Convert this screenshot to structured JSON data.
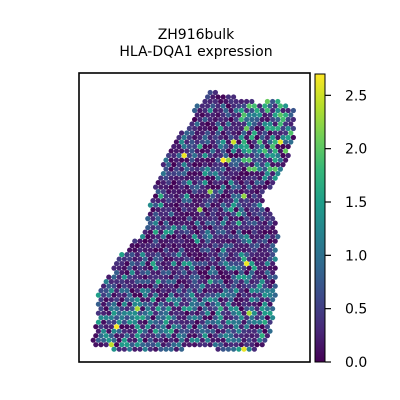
{
  "chart_data": {
    "type": "heatmap",
    "title_line1": "ZH916bulk",
    "title_line2": "HLA-DQA1 expression",
    "xlabel": "",
    "ylabel": "",
    "colorbar": {
      "min": 0.0,
      "max": 2.7,
      "ticks": [
        0.0,
        0.5,
        1.0,
        1.5,
        2.0,
        2.5
      ],
      "tick_labels": [
        "0.0",
        "0.5",
        "1.0",
        "1.5",
        "2.0",
        "2.5"
      ],
      "colormap": "viridis"
    },
    "colors": {
      "viridis_stops": [
        "#440154",
        "#482878",
        "#3e4989",
        "#31688e",
        "#26828e",
        "#1f9e89",
        "#35b779",
        "#6ece58",
        "#b5de2b",
        "#fde725"
      ]
    },
    "spots_note": ""
  }
}
